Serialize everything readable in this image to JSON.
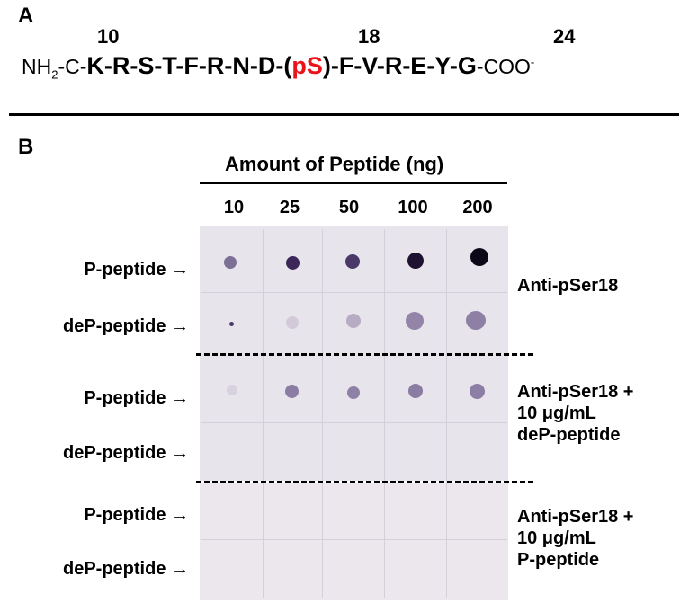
{
  "panel_a": {
    "label": "A",
    "positions": [
      "10",
      "18",
      "24"
    ],
    "nterm": "NH",
    "nterm_sub": "2",
    "nterm_rest": "-C-",
    "residues_before": "K-R-S-T-F-R-N-D-(",
    "phospho_residue": "pS",
    "residues_after": ")-F-V-R-E-Y-G",
    "cterm": "-COO",
    "cterm_sup": "-"
  },
  "panel_b": {
    "label": "B",
    "header": "Amount of Peptide (ng)",
    "amounts": [
      "10",
      "25",
      "50",
      "100",
      "200"
    ],
    "row_labels": [
      "P-peptide →",
      "deP-peptide →",
      "P-peptide →",
      "deP-peptide →",
      "P-peptide →",
      "deP-peptide →"
    ],
    "conditions": [
      [
        "Anti-pSer18"
      ],
      [
        "Anti-pSer18 +",
        "10 μg/mL",
        "deP-peptide"
      ],
      [
        "Anti-pSer18 +",
        "10 μg/mL",
        "P-peptide"
      ]
    ],
    "dot_color": "#2a1540"
  }
}
